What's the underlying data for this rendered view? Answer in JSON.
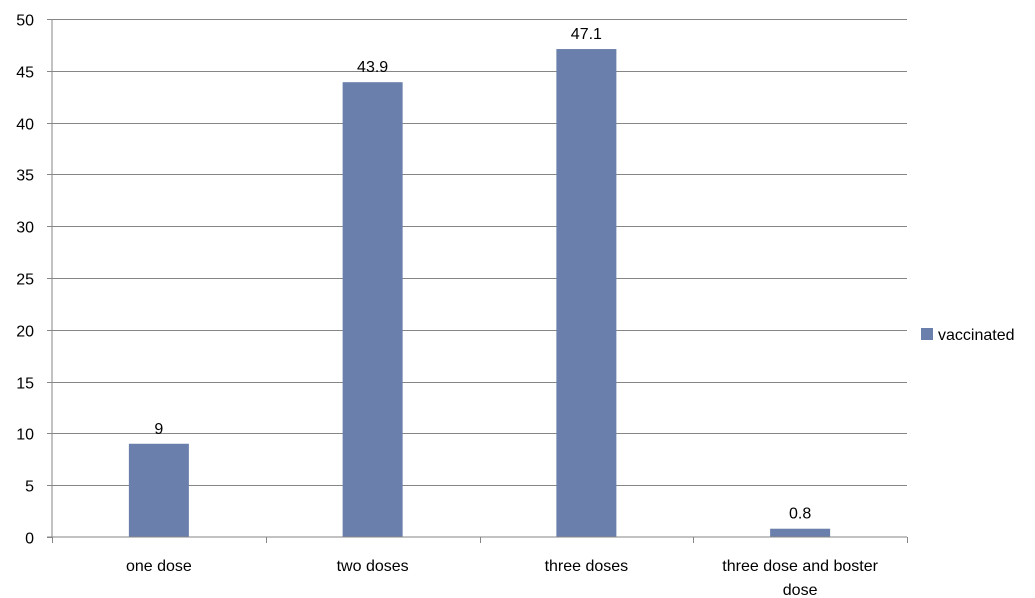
{
  "chart_data": {
    "type": "bar",
    "categories": [
      "one dose",
      "two doses",
      "three doses",
      "three dose and boster dose"
    ],
    "category_lines": [
      [
        "one dose"
      ],
      [
        "two doses"
      ],
      [
        "three doses"
      ],
      [
        "three dose and boster",
        "dose"
      ]
    ],
    "series": [
      {
        "name": "vaccinated",
        "values": [
          9,
          43.9,
          47.1,
          0.8
        ],
        "labels": [
          "9",
          "43.9",
          "47.1",
          "0.8"
        ]
      }
    ],
    "title": "",
    "xlabel": "",
    "ylabel": "",
    "ylim": [
      0,
      50
    ],
    "yticks": [
      0,
      5,
      10,
      15,
      20,
      25,
      30,
      35,
      40,
      45,
      50
    ],
    "grid": true,
    "legend_position": "right",
    "bar_color": "#6a7fab"
  }
}
